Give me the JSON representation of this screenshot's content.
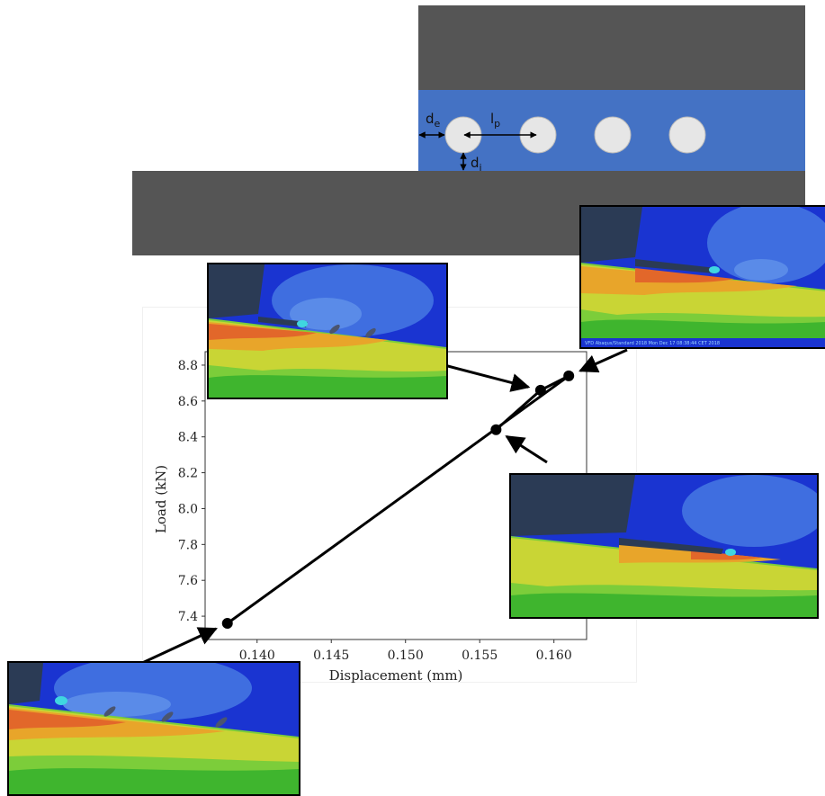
{
  "schematic": {
    "colors": {
      "plate": "#555555",
      "adhesive": "#4472c4",
      "pore": "#e6e6e6"
    },
    "labels": {
      "edge_distance": "d",
      "edge_distance_sub": "e",
      "pitch": "l",
      "pitch_sub": "p",
      "interface_distance": "d",
      "interface_distance_sub": "i"
    }
  },
  "chart_data": {
    "type": "line",
    "xlabel": "Displacement (mm)",
    "ylabel": "Load (kN)",
    "xlim": [
      0.1365,
      0.1622
    ],
    "ylim": [
      7.27,
      8.875
    ],
    "xticks": [
      "0.140",
      "0.145",
      "0.150",
      "0.155",
      "0.160"
    ],
    "yticks": [
      "7.4",
      "7.6",
      "7.8",
      "8.0",
      "8.2",
      "8.4",
      "8.6",
      "8.8"
    ],
    "series": [
      {
        "x": [
          0.138,
          0.161,
          0.1591,
          0.1561
        ],
        "y": [
          7.36,
          8.74,
          8.66,
          8.44
        ]
      }
    ],
    "grid": false,
    "legend": "none"
  },
  "insets": [
    {
      "name": "inset-top-left",
      "points_to": 3
    },
    {
      "name": "inset-top-right",
      "points_to": 2
    },
    {
      "name": "inset-mid-right",
      "points_to": 4
    },
    {
      "name": "inset-bottom-left",
      "points_to": 1
    }
  ],
  "inset_caption": "VFD   Abaqus/Standard 2018   Mon Dec 17 08:38:44 CET 2018"
}
